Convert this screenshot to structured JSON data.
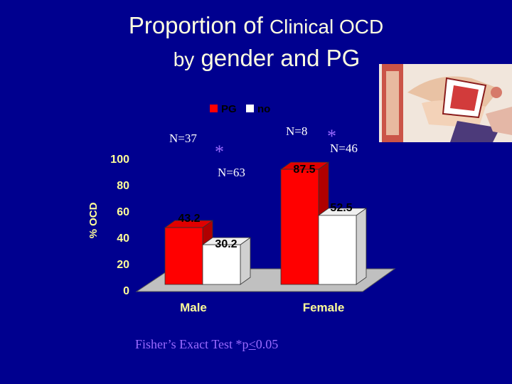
{
  "title": {
    "line1_a": "Proportion of",
    "line1_b": "Clinical OCD",
    "line2_a": "by",
    "line2_b": "gender and PG"
  },
  "chart_data": {
    "type": "bar",
    "categories": [
      "Male",
      "Female"
    ],
    "series": [
      {
        "name": "PG",
        "values": [
          43.2,
          87.5
        ],
        "labels": [
          "43.2",
          "87.5"
        ],
        "color": "#ff0000"
      },
      {
        "name": "no",
        "values": [
          30.2,
          52.5
        ],
        "labels": [
          "30.2",
          "52.5"
        ],
        "color": "#ffffff"
      }
    ],
    "ylabel": "% OCD",
    "ylim": [
      0,
      100
    ],
    "yticks": [
      "0",
      "20",
      "40",
      "60",
      "80",
      "100"
    ],
    "legend_position": "top",
    "annotations": {
      "male_pg_n": "N=37",
      "male_star": "*",
      "male_no_n": "N=63",
      "female_pg_n": "N=8",
      "female_star": "*",
      "female_no_n": "N=46"
    }
  },
  "footnote": {
    "text_a": "Fisher’s Exact Test *p",
    "text_b": "<",
    "text_c": "0.05"
  },
  "colors": {
    "background": "#00008f",
    "title": "#ffffe0",
    "pg_red": "#ff0000",
    "pg_red_dark": "#b00000",
    "no_white": "#ffffff",
    "floor_gray": "#c0c0c0",
    "star_purple": "#9b6bff",
    "tick_yellow": "#ffff99"
  }
}
